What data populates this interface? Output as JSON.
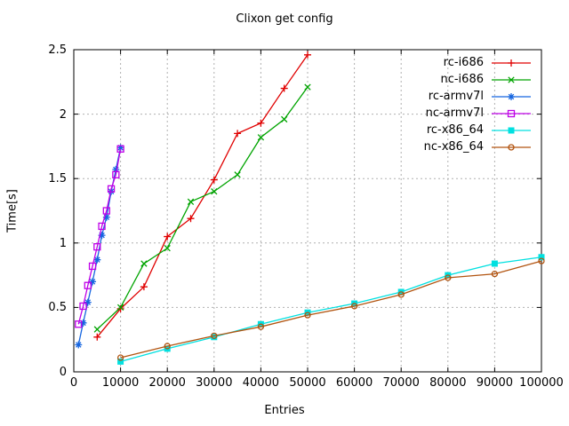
{
  "title": "Clixon get config",
  "chart_data": {
    "type": "line",
    "title": "Clixon get config",
    "xlabel": "Entries",
    "ylabel": "Time[s]",
    "xlim": [
      0,
      100000
    ],
    "ylim": [
      0,
      2.5
    ],
    "grid": true,
    "legend_position": "top-right-inside",
    "x_ticks": [
      0,
      10000,
      20000,
      30000,
      40000,
      50000,
      60000,
      70000,
      80000,
      90000,
      100000
    ],
    "x_tick_labels": [
      "0",
      "10000",
      "20000",
      "30000",
      "40000",
      "50000",
      "60000",
      "70000",
      "80000",
      "90000",
      "100000"
    ],
    "y_ticks": [
      0,
      0.5,
      1,
      1.5,
      2,
      2.5
    ],
    "y_tick_labels": [
      "0",
      "0.5",
      "1",
      "1.5",
      "2",
      "2.5"
    ],
    "series": [
      {
        "name": "rc-i686",
        "color": "#e00000",
        "marker": "plus",
        "x": [
          5000,
          10000,
          15000,
          20000,
          25000,
          30000,
          35000,
          40000,
          45000,
          50000
        ],
        "y": [
          0.27,
          0.49,
          0.66,
          1.05,
          1.19,
          1.49,
          1.85,
          1.93,
          2.2,
          2.46
        ]
      },
      {
        "name": "nc-i686",
        "color": "#00a400",
        "marker": "cross",
        "x": [
          5000,
          10000,
          15000,
          20000,
          25000,
          30000,
          35000,
          40000,
          45000,
          50000
        ],
        "y": [
          0.33,
          0.5,
          0.84,
          0.96,
          1.32,
          1.4,
          1.53,
          1.82,
          1.96,
          2.21
        ]
      },
      {
        "name": "rc-armv7l",
        "color": "#1565e0",
        "marker": "asterisk",
        "x": [
          1000,
          2000,
          3000,
          4000,
          5000,
          6000,
          7000,
          8000,
          9000,
          10000
        ],
        "y": [
          0.21,
          0.38,
          0.54,
          0.7,
          0.87,
          1.06,
          1.2,
          1.4,
          1.57,
          1.74
        ]
      },
      {
        "name": "nc-armv7l",
        "color": "#bf00e8",
        "marker": "square-open",
        "x": [
          1000,
          2000,
          3000,
          4000,
          5000,
          6000,
          7000,
          8000,
          9000,
          10000
        ],
        "y": [
          0.37,
          0.51,
          0.67,
          0.82,
          0.97,
          1.13,
          1.25,
          1.42,
          1.53,
          1.73
        ]
      },
      {
        "name": "rc-x86_64",
        "color": "#00e0e0",
        "marker": "square-filled",
        "x": [
          10000,
          20000,
          30000,
          40000,
          50000,
          60000,
          70000,
          80000,
          90000,
          100000
        ],
        "y": [
          0.08,
          0.18,
          0.27,
          0.37,
          0.46,
          0.53,
          0.62,
          0.75,
          0.84,
          0.89
        ]
      },
      {
        "name": "nc-x86_64",
        "color": "#b25410",
        "marker": "circle-open",
        "x": [
          10000,
          20000,
          30000,
          40000,
          50000,
          60000,
          70000,
          80000,
          90000,
          100000
        ],
        "y": [
          0.11,
          0.2,
          0.28,
          0.35,
          0.44,
          0.51,
          0.6,
          0.73,
          0.76,
          0.86
        ]
      }
    ],
    "style": {
      "grid_color": "#b0b0b0",
      "border_color": "#000000",
      "background": "#ffffff"
    }
  }
}
